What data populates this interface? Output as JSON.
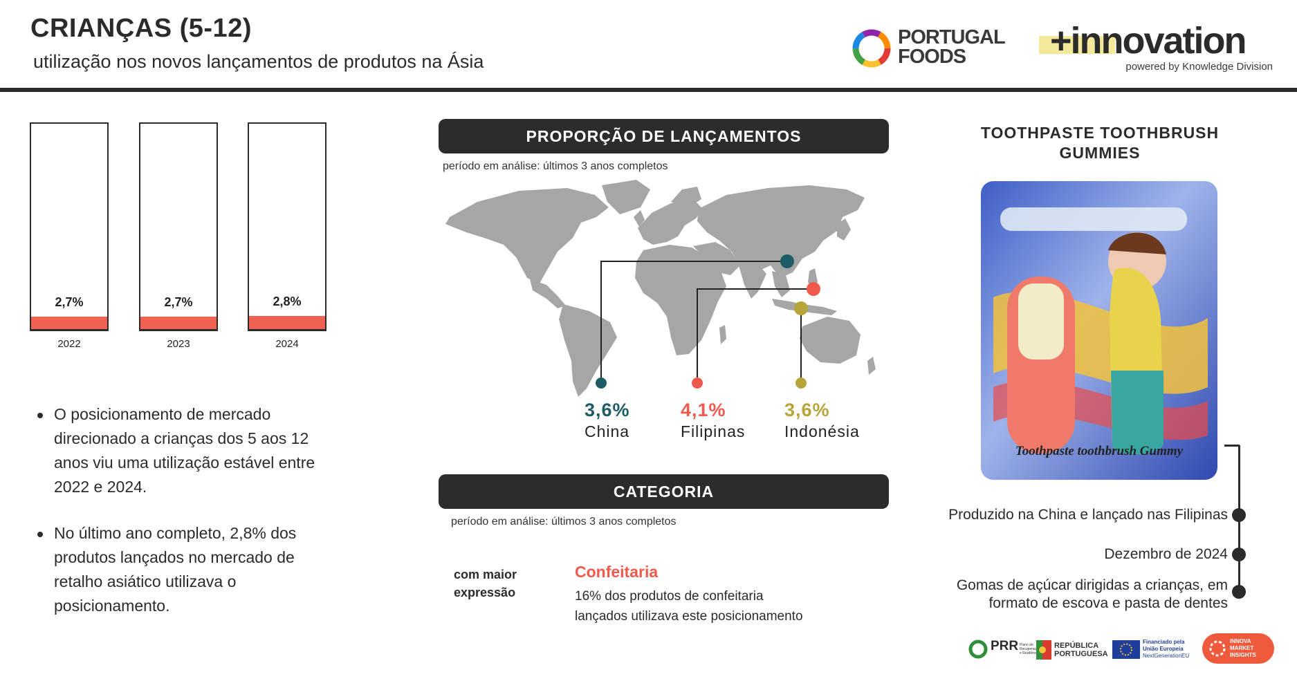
{
  "header": {
    "title": "CRIANÇAS (5-12)",
    "subtitle": "utilização nos novos lançamentos de produtos na Ásia",
    "logo_pf_line1": "PORTUGAL",
    "logo_pf_line2": "FOODS",
    "logo_innovation": "+innovation",
    "logo_innovation_sub": "powered by Knowledge Division"
  },
  "chart_data": {
    "type": "bar",
    "categories": [
      "2022",
      "2023",
      "2024"
    ],
    "values": [
      2.7,
      2.7,
      2.8
    ],
    "value_labels": [
      "2,7%",
      "2,7%",
      "2,8%"
    ],
    "ylim": [
      0,
      22
    ],
    "bar_color": "#ef6253"
  },
  "bullets": [
    "O posicionamento de mercado direcionado a crianças dos 5 aos 12 anos viu uma utilização estável entre 2022 e 2024.",
    "No último ano completo, 2,8% dos produtos lançados no mercado de retalho asiático utilizava o posicionamento."
  ],
  "launches": {
    "banner": "PROPORÇÃO DE LANÇAMENTOS",
    "period": "período em análise: últimos 3 anos completos",
    "countries": [
      {
        "value": "3,6%",
        "name": "China",
        "color": "#1d5c64"
      },
      {
        "value": "4,1%",
        "name": "Filipinas",
        "color": "#ef5a4d"
      },
      {
        "value": "3,6%",
        "name": "Indonésia",
        "color": "#b7a53a"
      }
    ],
    "map_color": "#a6a6a6"
  },
  "category": {
    "banner": "CATEGORIA",
    "period": "período em análise: últimos 3 anos completos",
    "label_line1": "com maior",
    "label_line2": "expressão",
    "name": "Confeitaria",
    "desc_line1": "16% dos produtos de confeitaria",
    "desc_line2": "lançados utilizava este posicionamento"
  },
  "product": {
    "title_line1": "TOOTHPASTE TOOTHBRUSH",
    "title_line2": "GUMMIES",
    "package_text": "Toothpaste toothbrush Gummy",
    "timeline": [
      {
        "line1": "Produzido na China e lançado nas Filipinas",
        "line2": ""
      },
      {
        "line1": "Dezembro de 2024",
        "line2": ""
      },
      {
        "line1": "Gomas de açúcar dirigidas a crianças, em",
        "line2": "formato de escova e pasta de dentes"
      }
    ]
  },
  "footer": {
    "prr": "PRR",
    "prr_sub": "Plano de Recuperação e Resiliência",
    "republica_line1": "REPÚBLICA",
    "republica_line2": "PORTUGUESA",
    "eu_line1": "Financiado pela",
    "eu_line2": "União Europeia",
    "eu_line3": "NextGenerationEU",
    "innova_line1": "INNOVA",
    "innova_line2": "MARKET",
    "innova_line3": "INSIGHTS"
  }
}
